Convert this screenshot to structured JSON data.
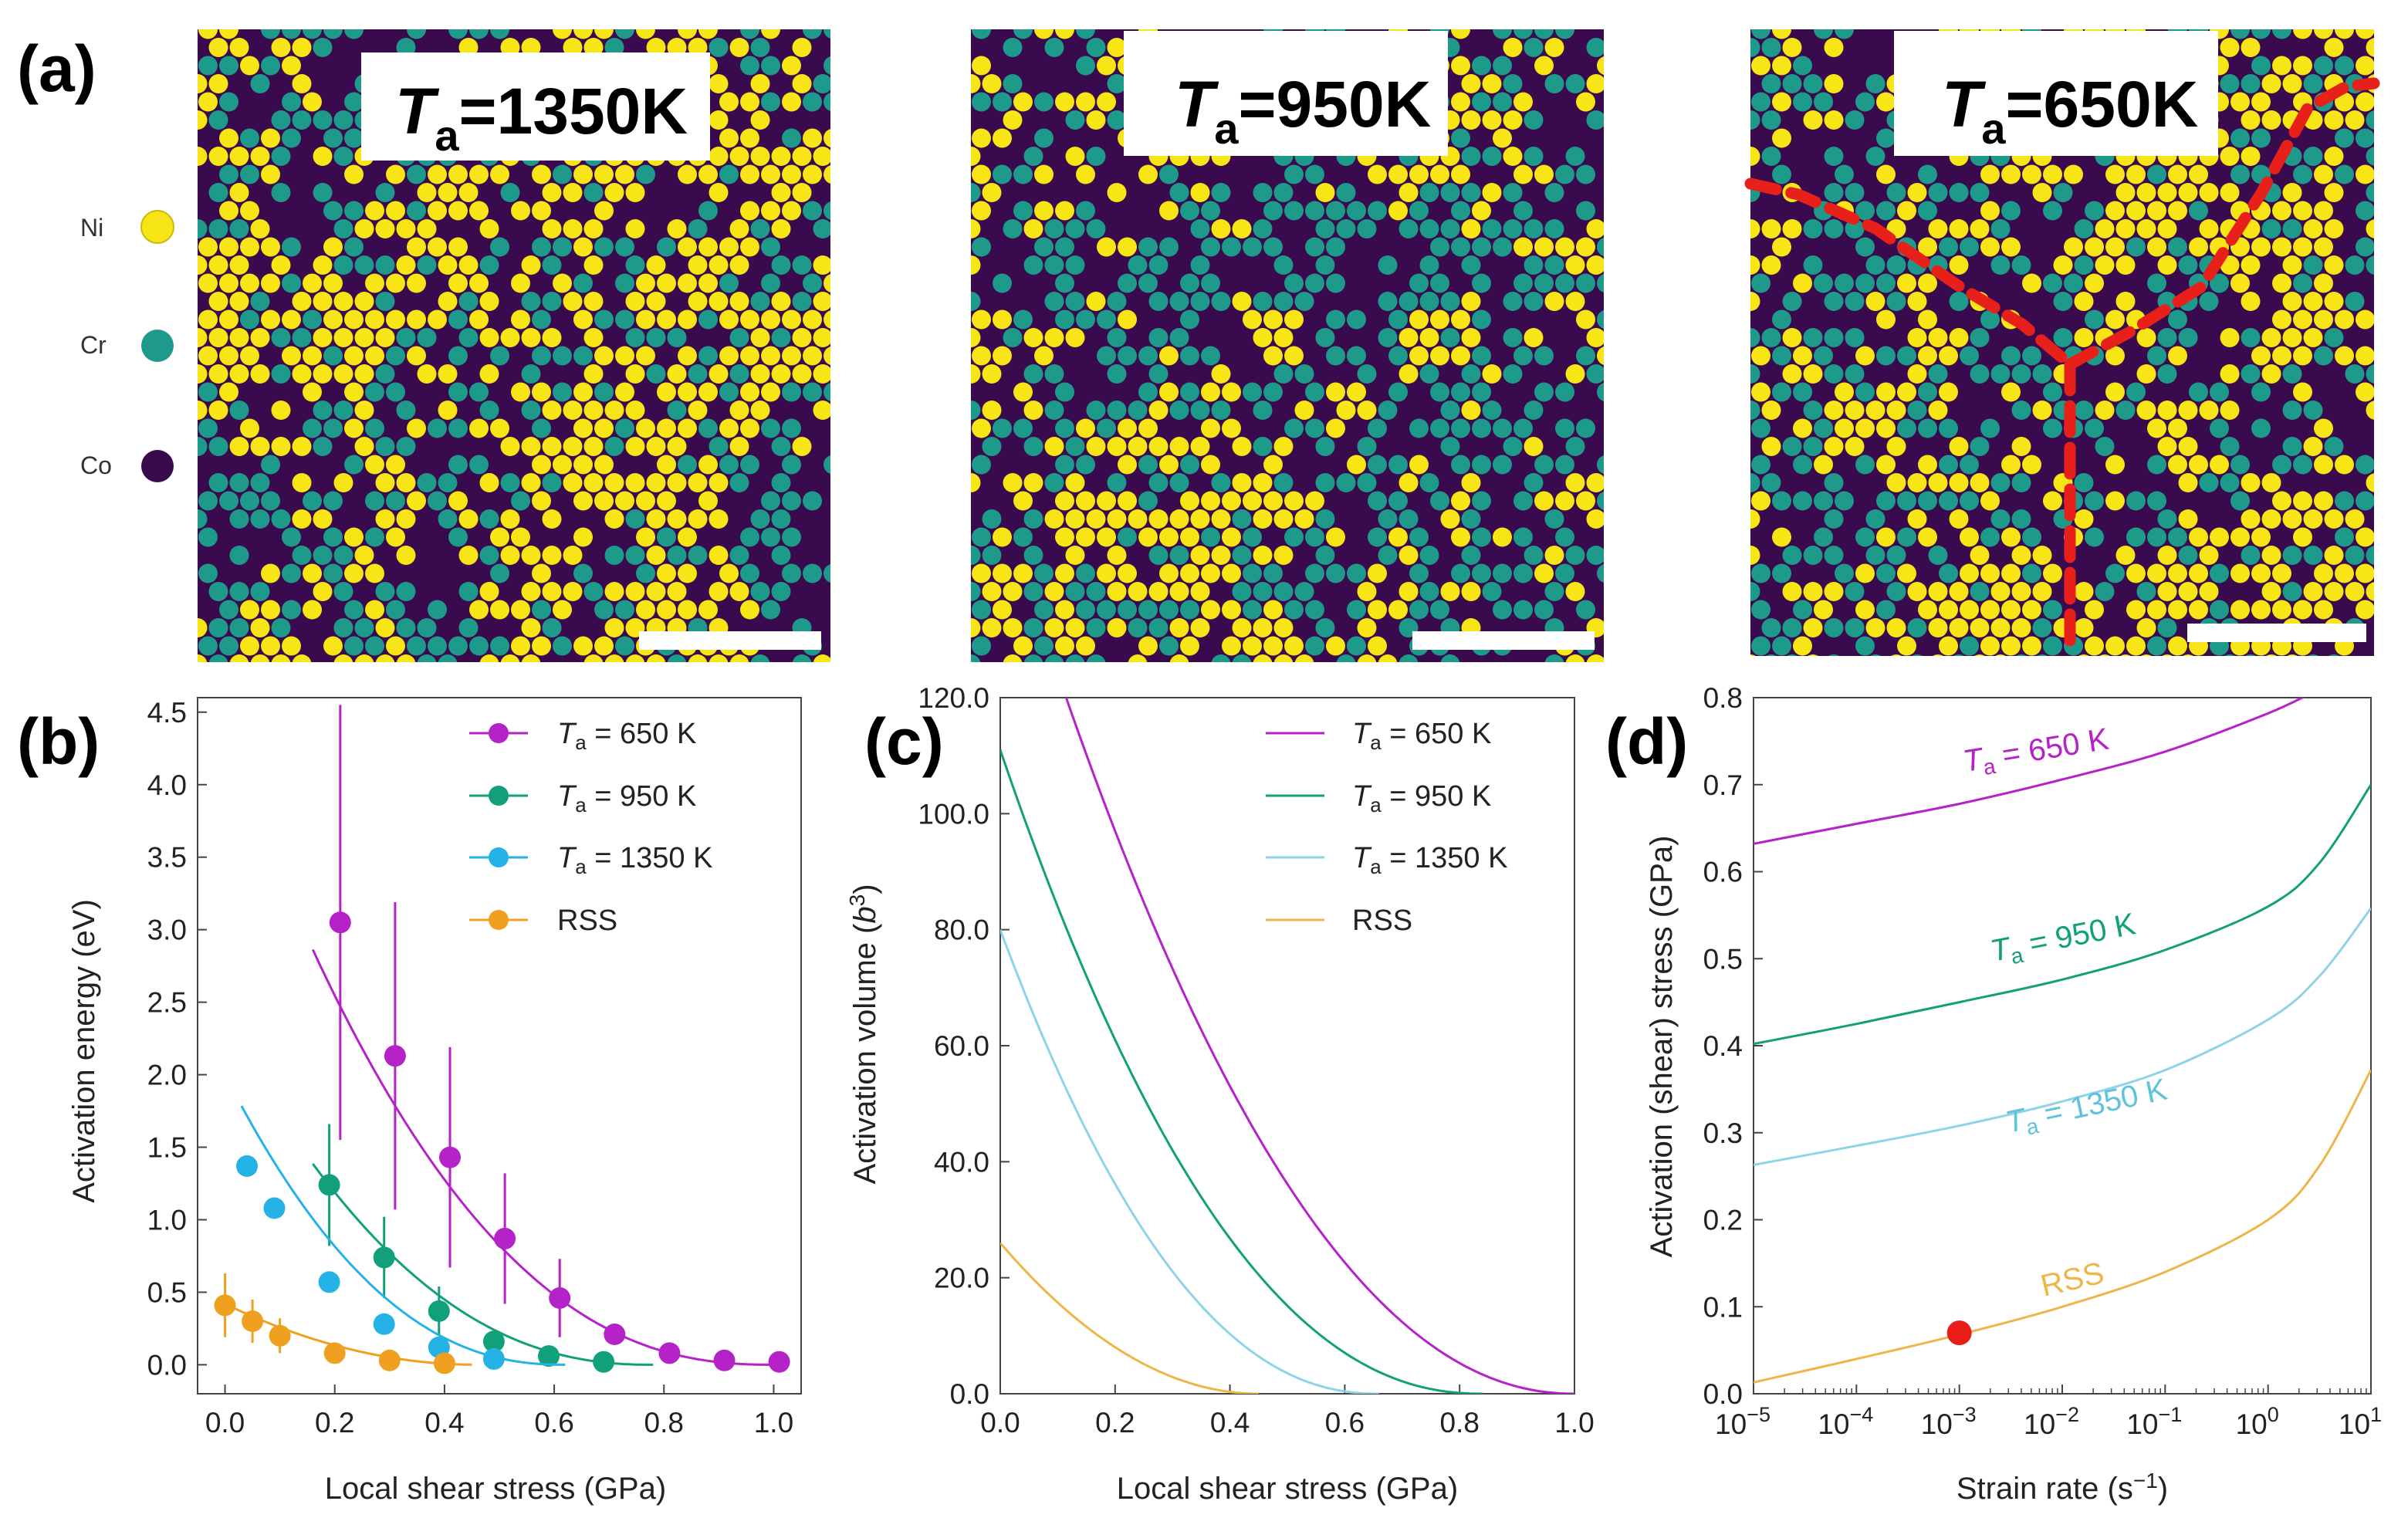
{
  "figure": {
    "panel_a_label": "(a)",
    "panel_b_label": "(b)",
    "panel_c_label": "(c)",
    "panel_d_label": "(d)"
  },
  "colors": {
    "ni": "#f7e516",
    "cr": "#1e9a8a",
    "co": "#3a0a4e",
    "t650": "#b422c8",
    "t950": "#12a07a",
    "t1350": "#25b2e6",
    "rss": "#f0a020",
    "t1350_line": "#8fd3e6",
    "rss_line": "#eeb64a",
    "boundary": "#e8201a",
    "marker": "#ea1c18"
  },
  "element_legend": [
    {
      "symbol": "Ni",
      "color_key": "ni"
    },
    {
      "symbol": "Cr",
      "color_key": "cr"
    },
    {
      "symbol": "Co",
      "color_key": "co"
    }
  ],
  "snapshots": [
    {
      "label_main": "T",
      "label_sub": "a",
      "label_value": "=1350K",
      "seed": 11,
      "ni_fraction": 0.36,
      "grain_boundary": false
    },
    {
      "label_main": "T",
      "label_sub": "a",
      "label_value": "=950K",
      "seed": 29,
      "ni_fraction": 0.36,
      "grain_boundary": false
    },
    {
      "label_main": "T",
      "label_sub": "a",
      "label_value": "=650K",
      "seed": 47,
      "ni_fraction": 0.42,
      "grain_boundary": true
    }
  ],
  "chart_data": [
    {
      "id": "b",
      "type": "scatter",
      "title": "",
      "xlabel": "Local shear stress (GPa)",
      "ylabel": "Activation energy (eV)",
      "xlim": [
        -0.05,
        1.05
      ],
      "ylim": [
        -0.2,
        4.6
      ],
      "xticks": [
        "0.0",
        "0.2",
        "0.4",
        "0.6",
        "0.8",
        "1.0"
      ],
      "yticks": [
        "0.0",
        "0.5",
        "1.0",
        "1.5",
        "2.0",
        "2.5",
        "3.0",
        "3.5",
        "4.0",
        "4.5"
      ],
      "legend_position": "top-right",
      "series": [
        {
          "name": "Ta = 650 K",
          "legend_main": "T",
          "legend_sub": "a",
          "legend_rest": " = 650 K",
          "color_key": "t650",
          "x": [
            0.21,
            0.31,
            0.41,
            0.51,
            0.61,
            0.71,
            0.81,
            0.91,
            1.01
          ],
          "y": [
            3.05,
            2.13,
            1.43,
            0.87,
            0.46,
            0.21,
            0.08,
            0.03,
            0.02
          ],
          "err": [
            1.5,
            1.06,
            0.76,
            0.45,
            0.27,
            0.0,
            0.0,
            0.0,
            0.0
          ],
          "fit": {
            "x0": 0.16,
            "x1": 1.0,
            "a": 4.35,
            "xc": 1.0,
            "p": 2.4
          }
        },
        {
          "name": "Ta = 950 K",
          "legend_main": "T",
          "legend_sub": "a",
          "legend_rest": " = 950 K",
          "color_key": "t950",
          "x": [
            0.19,
            0.29,
            0.39,
            0.49,
            0.59,
            0.69
          ],
          "y": [
            1.24,
            0.74,
            0.37,
            0.16,
            0.06,
            0.02
          ],
          "err": [
            0.42,
            0.28,
            0.17,
            0.0,
            0.0,
            0.0
          ],
          "fit": {
            "x0": 0.16,
            "x1": 0.78,
            "a": 2.35,
            "xc": 0.78,
            "p": 2.3
          }
        },
        {
          "name": "Ta = 1350 K",
          "legend_main": "T",
          "legend_sub": "a",
          "legend_rest": " = 1350 K",
          "color_key": "t1350",
          "x": [
            0.04,
            0.09,
            0.19,
            0.29,
            0.39,
            0.49
          ],
          "y": [
            1.37,
            1.08,
            0.57,
            0.28,
            0.12,
            0.04
          ],
          "err": [
            0.0,
            0.0,
            0.0,
            0.0,
            0.0,
            0.0
          ],
          "fit": {
            "x0": 0.03,
            "x1": 0.62,
            "a": 2.0,
            "xc": 0.62,
            "p": 2.3
          }
        },
        {
          "name": "RSS",
          "legend_main": "RSS",
          "legend_sub": "",
          "legend_rest": "",
          "color_key": "rss",
          "x": [
            0.0,
            0.05,
            0.1,
            0.2,
            0.3,
            0.4
          ],
          "y": [
            0.41,
            0.3,
            0.2,
            0.08,
            0.03,
            0.01
          ],
          "err": [
            0.22,
            0.15,
            0.12,
            0.0,
            0.0,
            0.0
          ],
          "fit": {
            "x0": 0.0,
            "x1": 0.45,
            "a": 0.42,
            "xc": 0.46,
            "p": 2.0
          }
        }
      ]
    },
    {
      "id": "c",
      "type": "line",
      "title": "",
      "xlabel": "Local shear stress (GPa)",
      "ylabel": "Activation volume (b3)",
      "ylabel_main": "Activation volume (",
      "ylabel_base": "b",
      "ylabel_sup": "3",
      "ylabel_end": ")",
      "xlim": [
        0.0,
        1.0
      ],
      "ylim": [
        0.0,
        120.0
      ],
      "xticks": [
        "0.0",
        "0.2",
        "0.4",
        "0.6",
        "0.8",
        "1.0"
      ],
      "yticks": [
        "0.0",
        "20.0",
        "40.0",
        "60.0",
        "80.0",
        "100.0",
        "120.0"
      ],
      "legend_position": "top-right",
      "series": [
        {
          "name": "Ta = 650 K",
          "legend_main": "T",
          "legend_sub": "a",
          "legend_rest": " = 650 K",
          "color_key": "t650",
          "a": 155,
          "xc": 1.0,
          "p": 2.1
        },
        {
          "name": "Ta = 950 K",
          "legend_main": "T",
          "legend_sub": "a",
          "legend_rest": " = 950 K",
          "color_key": "t950",
          "a": 111,
          "xc": 0.84,
          "p": 2.2
        },
        {
          "name": "Ta = 1350 K",
          "legend_main": "T",
          "legend_sub": "a",
          "legend_rest": " = 1350 K",
          "color_key": "t1350_line",
          "a": 80,
          "xc": 0.66,
          "p": 2.2
        },
        {
          "name": "RSS",
          "legend_main": "RSS",
          "legend_sub": "",
          "legend_rest": "",
          "color_key": "rss_line",
          "a": 26,
          "xc": 0.45,
          "p": 2.0
        }
      ]
    },
    {
      "id": "d",
      "type": "line",
      "title": "",
      "xlabel": "Strain rate (s−1)",
      "xlabel_main": "Strain rate (s",
      "xlabel_sup": "−1",
      "xlabel_end": ")",
      "ylabel": "Activation (shear) stress (GPa)",
      "xscale": "log",
      "xlim_log10": [
        -5,
        1
      ],
      "ylim": [
        0.0,
        0.8
      ],
      "xticks": [
        {
          "base": "10",
          "exp": "−5"
        },
        {
          "base": "10",
          "exp": "−4"
        },
        {
          "base": "10",
          "exp": "−3"
        },
        {
          "base": "10",
          "exp": "−2"
        },
        {
          "base": "10",
          "exp": "−1"
        },
        {
          "base": "10",
          "exp": "0"
        },
        {
          "base": "10",
          "exp": "1"
        }
      ],
      "yticks": [
        "0.0",
        "0.1",
        "0.2",
        "0.3",
        "0.4",
        "0.5",
        "0.6",
        "0.7",
        "0.8"
      ],
      "series": [
        {
          "name": "Ta = 650 K",
          "label_main": "T",
          "label_sub": "a",
          "label_rest": " = 650 K",
          "color_key": "t650",
          "points_log10x": [
            -5,
            -4,
            -3,
            -2,
            -1,
            0,
            0.5
          ],
          "y": [
            0.632,
            0.655,
            0.678,
            0.706,
            0.738,
            0.782,
            0.81
          ]
        },
        {
          "name": "Ta = 950 K",
          "label_main": "T",
          "label_sub": "a",
          "label_rest": " = 950 K",
          "color_key": "t950",
          "points_log10x": [
            -5,
            -4,
            -3,
            -2,
            -1,
            0,
            0.5,
            1
          ],
          "y": [
            0.402,
            0.425,
            0.45,
            0.476,
            0.51,
            0.56,
            0.61,
            0.7
          ]
        },
        {
          "name": "Ta = 1350 K",
          "label_main": "T",
          "label_sub": "a",
          "label_rest": " = 1350 K",
          "color_key": "t1350_line",
          "points_log10x": [
            -5,
            -4,
            -3,
            -2,
            -1,
            0,
            0.5,
            1
          ],
          "y": [
            0.263,
            0.285,
            0.308,
            0.336,
            0.372,
            0.43,
            0.48,
            0.558
          ]
        },
        {
          "name": "RSS",
          "label_main": "RSS",
          "label_sub": "",
          "label_rest": "",
          "color_key": "rss_line",
          "points_log10x": [
            -5,
            -4,
            -3,
            -2,
            -1,
            0,
            0.5,
            1
          ],
          "y": [
            0.013,
            0.04,
            0.068,
            0.1,
            0.14,
            0.2,
            0.262,
            0.372
          ]
        }
      ],
      "highlight_point": {
        "log10x": -3,
        "y": 0.07
      }
    }
  ]
}
